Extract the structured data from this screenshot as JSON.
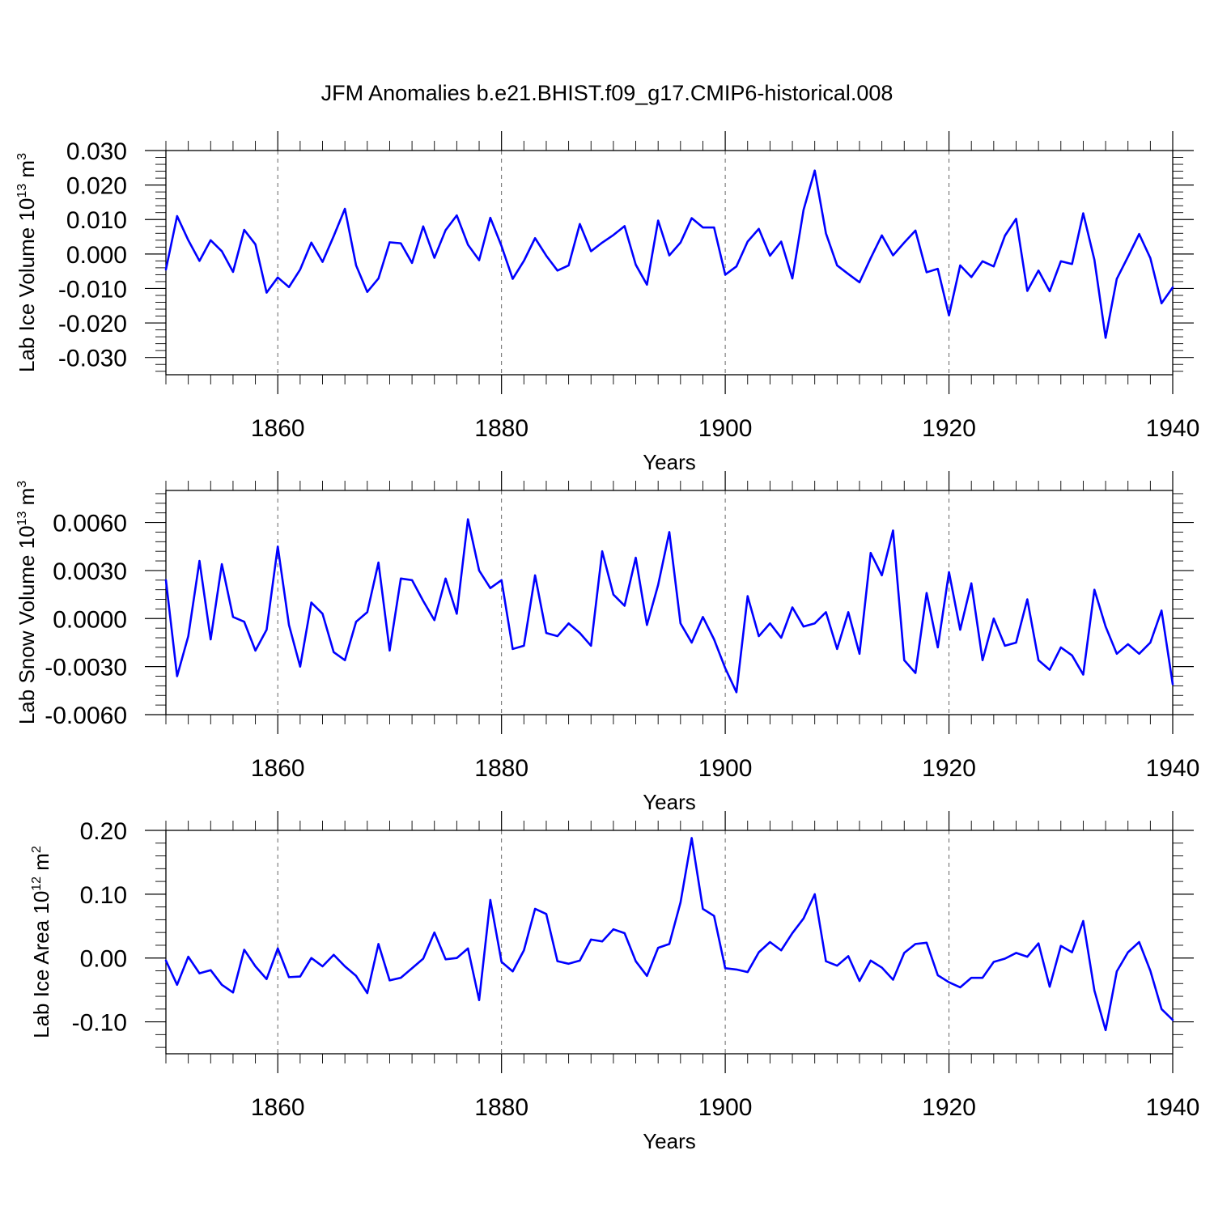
{
  "title": "JFM Anomalies b.e21.BHIST.f09_g17.CMIP6-historical.008",
  "colors": {
    "series": "#0000ff",
    "grid": "#666666",
    "axes": "#000000"
  },
  "chart_data": [
    {
      "type": "line",
      "ylabel_main": "Lab Ice Volume 10",
      "ylabel_exp": "13",
      "ylabel_unit": " m",
      "ylabel_unit_exp": "3",
      "xlabel": "Years",
      "xlim": [
        1850,
        1940
      ],
      "ylim": [
        -0.035,
        0.03
      ],
      "xticks": [
        1860,
        1880,
        1900,
        1920,
        1940
      ],
      "xtick_labels": [
        "1860",
        "1880",
        "1900",
        "1920",
        "1940"
      ],
      "yticks": [
        0.03,
        0.02,
        0.01,
        0.0,
        -0.01,
        -0.02,
        -0.03
      ],
      "ytick_labels": [
        "0.030",
        "0.020",
        "0.010",
        "0.000",
        "-0.010",
        "-0.020",
        "-0.030"
      ],
      "grid_x": [
        1860,
        1880,
        1900,
        1920
      ],
      "x_start": 1850,
      "values": [
        -0.0045,
        0.011,
        0.004,
        -0.002,
        0.004,
        0.0008,
        -0.0052,
        0.007,
        0.0028,
        -0.0112,
        -0.0068,
        -0.0096,
        -0.0045,
        0.0033,
        -0.0023,
        0.0052,
        0.0131,
        -0.0033,
        -0.011,
        -0.0071,
        0.0034,
        0.0031,
        -0.0026,
        0.008,
        -0.0011,
        0.0069,
        0.0112,
        0.0027,
        -0.0018,
        0.0105,
        0.0023,
        -0.0072,
        -0.002,
        0.0046,
        -0.0005,
        -0.0048,
        -0.0033,
        0.0087,
        0.0008,
        0.0033,
        0.0055,
        0.0081,
        -0.0031,
        -0.0089,
        0.0097,
        -0.0004,
        0.0033,
        0.0104,
        0.0077,
        0.0077,
        -0.006,
        -0.0036,
        0.0036,
        0.0073,
        -0.0005,
        0.0036,
        -0.0071,
        0.0128,
        0.0242,
        0.006,
        -0.0033,
        -0.0058,
        -0.0082,
        -0.0012,
        0.0054,
        -0.0004,
        0.0033,
        0.0068,
        -0.0053,
        -0.0043,
        -0.0178,
        -0.0033,
        -0.0067,
        -0.0021,
        -0.0036,
        0.0053,
        0.0102,
        -0.0107,
        -0.0048,
        -0.0108,
        -0.0021,
        -0.0029,
        0.0118,
        -0.0017,
        -0.0243,
        -0.0072,
        -0.0008,
        0.0058,
        -0.0012,
        -0.0143,
        -0.0097
      ]
    },
    {
      "type": "line",
      "ylabel_main": "Lab Snow Volume 10",
      "ylabel_exp": "13",
      "ylabel_unit": " m",
      "ylabel_unit_exp": "3",
      "xlabel": "Years",
      "xlim": [
        1850,
        1940
      ],
      "ylim": [
        -0.006,
        0.008
      ],
      "xticks": [
        1860,
        1880,
        1900,
        1920,
        1940
      ],
      "xtick_labels": [
        "1860",
        "1880",
        "1900",
        "1920",
        "1940"
      ],
      "yticks": [
        0.006,
        0.003,
        0.0,
        -0.003,
        -0.006
      ],
      "ytick_labels": [
        "0.0060",
        "0.0030",
        "0.0000",
        "-0.0030",
        "-0.0060"
      ],
      "grid_x": [
        1860,
        1880,
        1900,
        1920
      ],
      "x_start": 1850,
      "values": [
        0.0024,
        -0.0036,
        -0.0011,
        0.0036,
        -0.0013,
        0.0034,
        0.0001,
        -0.0002,
        -0.002,
        -0.0007,
        0.0045,
        -0.0004,
        -0.003,
        0.001,
        0.0003,
        -0.0021,
        -0.0026,
        -0.0002,
        0.0004,
        0.0035,
        -0.002,
        0.0025,
        0.0024,
        0.0011,
        -0.0001,
        0.0025,
        0.0003,
        0.0062,
        0.003,
        0.0019,
        0.0024,
        -0.0019,
        -0.0017,
        0.0027,
        -0.0009,
        -0.0011,
        -0.0003,
        -0.0009,
        -0.0017,
        0.0042,
        0.0015,
        0.0008,
        0.0038,
        -0.0004,
        0.0021,
        0.0054,
        -0.0003,
        -0.0015,
        0.0001,
        -0.0013,
        -0.0031,
        -0.0046,
        0.0014,
        -0.0011,
        -0.0003,
        -0.0012,
        0.0007,
        -0.0005,
        -0.0003,
        0.0004,
        -0.0019,
        0.0004,
        -0.0022,
        0.0041,
        0.0027,
        0.0055,
        -0.0026,
        -0.0034,
        0.0016,
        -0.0018,
        0.0029,
        -0.0007,
        0.0022,
        -0.0026,
        0.0,
        -0.0017,
        -0.0015,
        0.0012,
        -0.0026,
        -0.0032,
        -0.0018,
        -0.0023,
        -0.0035,
        0.0018,
        -0.0005,
        -0.0022,
        -0.0016,
        -0.0022,
        -0.0015,
        0.0005,
        -0.0041
      ]
    },
    {
      "type": "line",
      "ylabel_main": "Lab Ice Area 10",
      "ylabel_exp": "12",
      "ylabel_unit": " m",
      "ylabel_unit_exp": "2",
      "xlabel": "Years",
      "xlim": [
        1850,
        1940
      ],
      "ylim": [
        -0.15,
        0.2
      ],
      "xticks": [
        1860,
        1880,
        1900,
        1920,
        1940
      ],
      "xtick_labels": [
        "1860",
        "1880",
        "1900",
        "1920",
        "1940"
      ],
      "yticks": [
        0.2,
        0.1,
        0.0,
        -0.1
      ],
      "ytick_labels": [
        "0.20",
        "0.10",
        "0.00",
        "-0.10"
      ],
      "grid_x": [
        1860,
        1880,
        1900,
        1920
      ],
      "x_start": 1850,
      "values": [
        -0.004,
        -0.042,
        0.002,
        -0.024,
        -0.019,
        -0.042,
        -0.054,
        0.013,
        -0.013,
        -0.033,
        0.015,
        -0.03,
        -0.029,
        0.0,
        -0.013,
        0.005,
        -0.013,
        -0.028,
        -0.055,
        0.022,
        -0.035,
        -0.031,
        -0.016,
        -0.001,
        0.04,
        -0.002,
        0.0,
        0.015,
        -0.066,
        0.091,
        -0.006,
        -0.021,
        0.012,
        0.077,
        0.069,
        -0.005,
        -0.009,
        -0.004,
        0.029,
        0.026,
        0.045,
        0.039,
        -0.005,
        -0.028,
        0.016,
        0.022,
        0.087,
        0.188,
        0.077,
        0.066,
        -0.016,
        -0.018,
        -0.022,
        0.009,
        0.025,
        0.012,
        0.039,
        0.062,
        0.1,
        -0.005,
        -0.012,
        0.003,
        -0.036,
        -0.004,
        -0.015,
        -0.034,
        0.008,
        0.022,
        0.024,
        -0.027,
        -0.038,
        -0.046,
        -0.031,
        -0.031,
        -0.006,
        -0.001,
        0.008,
        0.002,
        0.023,
        -0.045,
        0.019,
        0.009,
        0.058,
        -0.051,
        -0.113,
        -0.021,
        0.009,
        0.025,
        -0.02,
        -0.08,
        -0.097
      ]
    }
  ]
}
